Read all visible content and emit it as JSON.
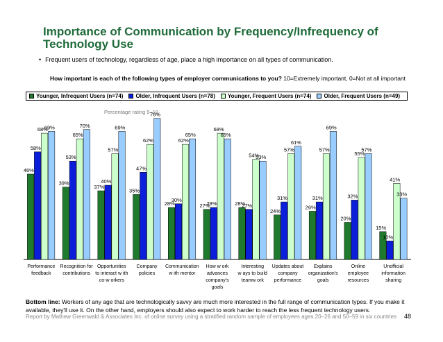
{
  "title": "Importance of Communication by Frequency/Infrequency of Technology Use",
  "bullet": "Frequent users of technology, regardless of age, place a high importance on all types of communication.",
  "question": {
    "bold": "How important is each of the following types of employer communications to you?",
    "scale": "10=Extremely important, 0=Not at all important"
  },
  "colors": {
    "younger_infrequent": "#1f7a2e",
    "older_infrequent": "#0b1ed9",
    "younger_frequent": "#ccffcc",
    "older_frequent": "#99ccff"
  },
  "chart_data": {
    "type": "bar",
    "subtitle": "Percentage rating 9–10",
    "categories": [
      [
        "Performance",
        "feedback"
      ],
      [
        "Recognition for",
        "contributions"
      ],
      [
        "Opportunities",
        "to interact w ith",
        "co-w orkers"
      ],
      [
        "Company",
        "policies"
      ],
      [
        "Communication",
        "w ith mentor"
      ],
      [
        "How w ork",
        "advances",
        "company's",
        "goals"
      ],
      [
        "Interesting",
        "w ays to build",
        "teamw ork"
      ],
      [
        "Updates about",
        "company",
        "performance"
      ],
      [
        "Explains",
        "organization's",
        "goals"
      ],
      [
        "Online",
        "employee",
        "resources"
      ],
      [
        "Unofficial",
        "information",
        "sharing"
      ]
    ],
    "series": [
      {
        "name": "Younger, Infrequent Users (n=74)",
        "color_key": "younger_infrequent",
        "values": [
          46,
          39,
          37,
          35,
          28,
          27,
          28,
          24,
          26,
          20,
          15
        ]
      },
      {
        "name": "Older, Infrequent Users (n=78)",
        "color_key": "older_infrequent",
        "values": [
          58,
          53,
          40,
          47,
          30,
          28,
          27,
          31,
          31,
          32,
          10
        ]
      },
      {
        "name": "Younger, Frequent Users (n=74)",
        "color_key": "younger_frequent",
        "values": [
          68,
          65,
          57,
          62,
          62,
          68,
          54,
          57,
          57,
          55,
          41
        ]
      },
      {
        "name": "Older, Frequent Users (n=49)",
        "color_key": "older_frequent",
        "values": [
          69,
          70,
          69,
          76,
          65,
          65,
          53,
          61,
          69,
          57,
          33
        ]
      }
    ],
    "value_suffix": "%",
    "ylim": [
      0,
      80
    ],
    "legend_position": "top"
  },
  "bottom_line": {
    "bold": "Bottom line:",
    "text": "Workers of any age that are technologically savvy are much more interested in the full range of communication types. If you make it available, they'll use it. On the other hand, employers should also expect to work harder to reach the less frequent technology users."
  },
  "footer": "Report by Mathew Greenwald & Associates Inc. of online survey using a stratified random sample of employees ages 20–26 and 50–59 in six countries",
  "page_number": "48"
}
